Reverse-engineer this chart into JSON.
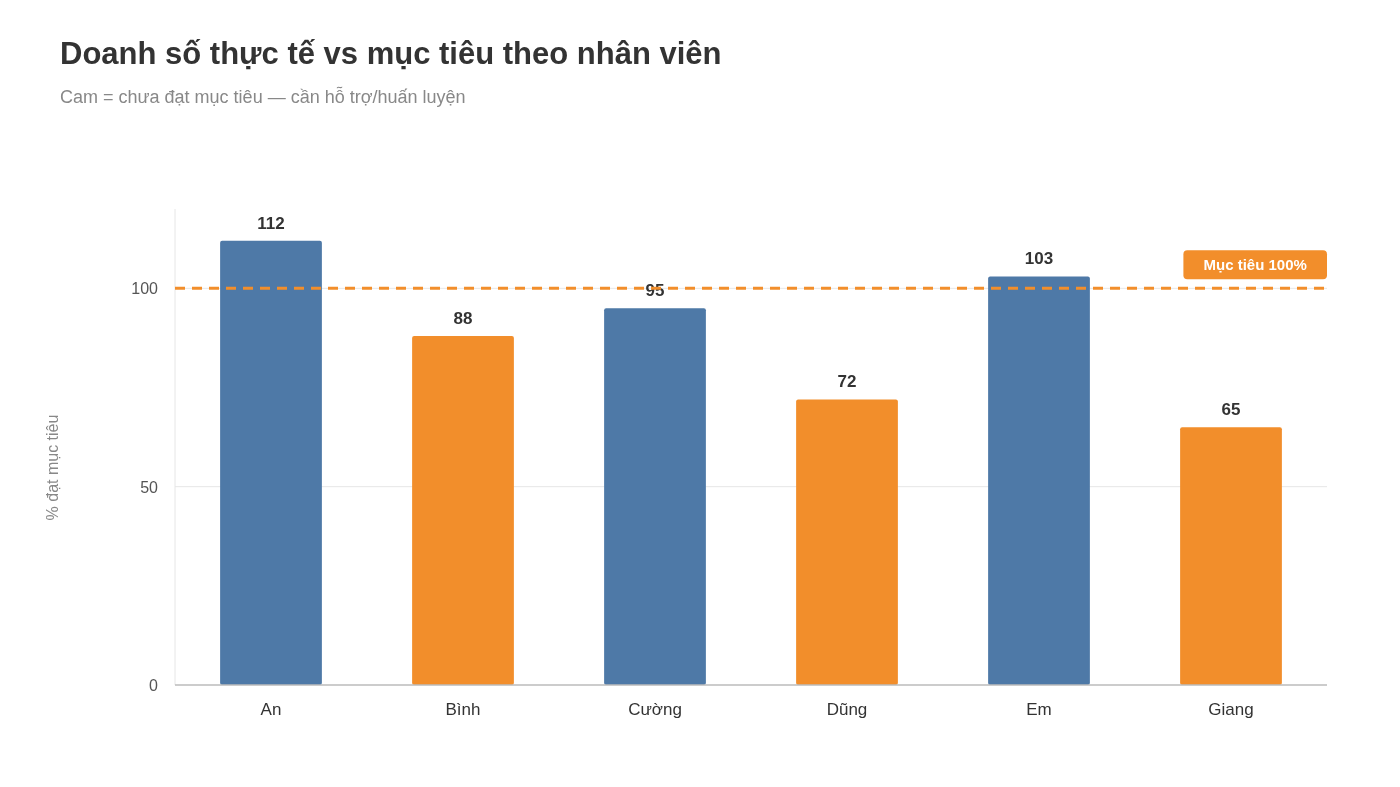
{
  "chart_data": {
    "type": "bar",
    "title": "Doanh số thực tế vs mục tiêu theo nhân viên",
    "subtitle": "Cam = chưa đạt mục tiêu — cần hỗ trợ/huấn luyện",
    "ylabel": "% đạt mục tiêu",
    "categories": [
      "An",
      "Bình",
      "Cường",
      "Dũng",
      "Em",
      "Giang"
    ],
    "values": [
      112,
      88,
      95,
      72,
      103,
      65
    ],
    "colors": [
      "#4e79a7",
      "#f28e2b",
      "#4e79a7",
      "#f28e2b",
      "#4e79a7",
      "#f28e2b"
    ],
    "ylim": [
      0,
      120
    ],
    "yticks": [
      0,
      50,
      100
    ],
    "grid": "y",
    "data_labels": true,
    "ref_lines": [
      {
        "axis": "y",
        "value": 100,
        "label": "Mục tiêu 100%",
        "color": "#f28e2b",
        "line_style": "dashed"
      }
    ]
  }
}
